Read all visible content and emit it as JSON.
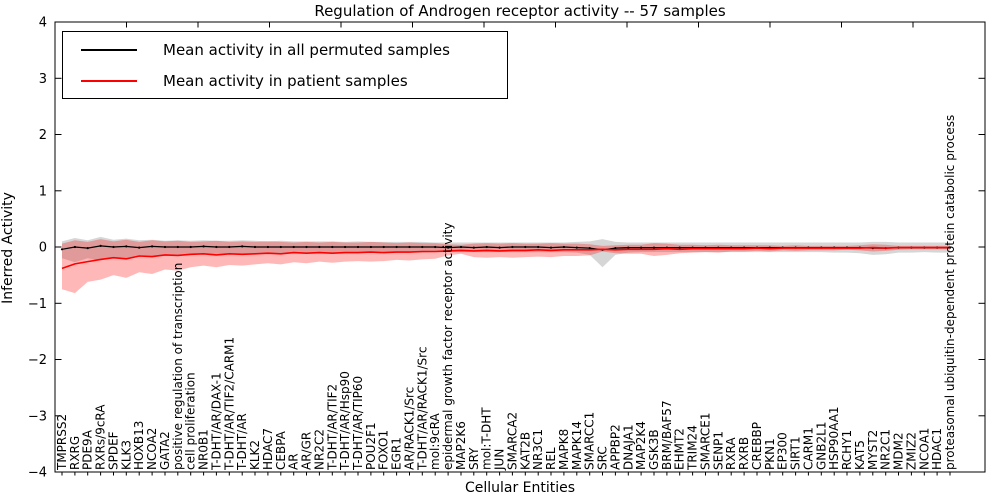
{
  "title": "Regulation of Androgen receptor activity -- 57 samples",
  "axes": {
    "x_label": "Cellular Entities",
    "y_label": "Inferred Activity",
    "y_tick_labels": [
      "4",
      "3",
      "2",
      "1",
      "0",
      "−1",
      "−2",
      "−3",
      "−4"
    ],
    "y_tick_values": [
      4,
      3,
      2,
      1,
      0,
      -1,
      -2,
      -3,
      -4
    ]
  },
  "legend": {
    "entries": [
      {
        "label": "Mean activity in all permuted samples",
        "color": "#000000"
      },
      {
        "label": "Mean activity in patient samples",
        "color": "#ff0000"
      }
    ]
  },
  "chart_data": {
    "type": "line",
    "title": "Regulation of Androgen receptor activity -- 57 samples",
    "xlabel": "Cellular Entities",
    "ylabel": "Inferred Activity",
    "ylim": [
      -4,
      4
    ],
    "grid": false,
    "legend_position": "upper left",
    "categories": [
      "TMPRSS2",
      "RXRG",
      "PDE9A",
      "RXRs/9cRA",
      "SPDEF",
      "KLK3",
      "HOXB13",
      "NCOA2",
      "GATA2",
      "positive regulation of transcription",
      "cell proliferation",
      "NR0B1",
      "T-DHT/AR/DAX-1",
      "T-DHT/AR/TIF2/CARM1",
      "T-DHT/AR",
      "KLK2",
      "HDAC7",
      "CEBPA",
      "AR",
      "AR/GR",
      "NR2C2",
      "T-DHT/AR/TIF2",
      "T-DHT/AR/Hsp90",
      "T-DHT/AR/TIP60",
      "POU2F1",
      "FOXO1",
      "EGR1",
      "AR/RACK1/Src",
      "T-DHT/AR/RACK1/Src",
      "mol:9cRA",
      "epidermal growth factor receptor activity",
      "MAP2K6",
      "SRY",
      "mol:T-DHT",
      "JUN",
      "SMARCA2",
      "KAT2B",
      "NR3C1",
      "REL",
      "MAPK8",
      "MAPK14",
      "SMARCC1",
      "SRC",
      "APPBP2",
      "DNAJA1",
      "MAP2K4",
      "GSK3B",
      "BRM/BAF57",
      "EHMT2",
      "TRIM24",
      "SMARCE1",
      "SENP1",
      "RXRA",
      "RXRB",
      "CREBBP",
      "PKN1",
      "EP300",
      "SIRT1",
      "CARM1",
      "GNB2L1",
      "HSP90AA1",
      "RCHY1",
      "KAT5",
      "MYST2",
      "NR2C1",
      "MDM2",
      "ZMIZ2",
      "NCOA1",
      "HDAC1",
      "proteasomal ubiquitin-dependent protein catabolic process"
    ],
    "series": [
      {
        "id": "permuted",
        "name": "Mean activity in all permuted samples",
        "color": "#000000",
        "band_color": "rgba(0,0,0,0.16)",
        "markers": true,
        "values": [
          -0.04,
          0.0,
          -0.02,
          0.02,
          0.0,
          0.01,
          -0.01,
          0.01,
          0.0,
          0.0,
          0.0,
          0.01,
          0.0,
          0.0,
          0.01,
          0.0,
          0.0,
          0.0,
          0.0,
          0.0,
          0.0,
          0.0,
          0.0,
          0.0,
          0.0,
          0.0,
          0.0,
          0.0,
          0.0,
          0.0,
          -0.01,
          0.0,
          -0.01,
          0.0,
          -0.01,
          0.0,
          0.0,
          0.0,
          -0.01,
          0.0,
          -0.01,
          -0.02,
          -0.05,
          -0.02,
          -0.01,
          -0.01,
          -0.01,
          -0.01,
          -0.01,
          -0.01,
          -0.01,
          -0.01,
          -0.01,
          -0.01,
          -0.01,
          -0.01,
          -0.01,
          -0.01,
          -0.01,
          -0.01,
          -0.01,
          -0.01,
          -0.01,
          -0.02,
          -0.02,
          -0.01,
          -0.01,
          -0.01,
          -0.01,
          -0.01
        ],
        "band_upper": [
          0.1,
          0.16,
          0.12,
          0.18,
          0.13,
          0.15,
          0.12,
          0.13,
          0.11,
          0.12,
          0.11,
          0.12,
          0.11,
          0.11,
          0.12,
          0.11,
          0.1,
          0.11,
          0.1,
          0.1,
          0.1,
          0.1,
          0.09,
          0.1,
          0.09,
          0.09,
          0.09,
          0.09,
          0.09,
          0.08,
          0.08,
          0.08,
          0.08,
          0.08,
          0.08,
          0.08,
          0.08,
          0.08,
          0.08,
          0.08,
          0.09,
          0.1,
          0.14,
          0.09,
          0.08,
          0.08,
          0.08,
          0.08,
          0.08,
          0.08,
          0.08,
          0.08,
          0.08,
          0.08,
          0.08,
          0.08,
          0.08,
          0.08,
          0.08,
          0.08,
          0.08,
          0.08,
          0.08,
          0.09,
          0.09,
          0.08,
          0.08,
          0.08,
          0.08,
          0.08
        ],
        "band_lower": [
          -0.2,
          -0.27,
          -0.2,
          -0.24,
          -0.18,
          -0.2,
          -0.16,
          -0.17,
          -0.14,
          -0.15,
          -0.13,
          -0.13,
          -0.13,
          -0.12,
          -0.13,
          -0.12,
          -0.11,
          -0.12,
          -0.11,
          -0.11,
          -0.11,
          -0.11,
          -0.1,
          -0.1,
          -0.1,
          -0.1,
          -0.1,
          -0.1,
          -0.1,
          -0.09,
          -0.09,
          -0.09,
          -0.09,
          -0.09,
          -0.09,
          -0.09,
          -0.09,
          -0.09,
          -0.09,
          -0.09,
          -0.1,
          -0.14,
          -0.36,
          -0.14,
          -0.1,
          -0.09,
          -0.09,
          -0.09,
          -0.09,
          -0.09,
          -0.09,
          -0.09,
          -0.09,
          -0.09,
          -0.09,
          -0.09,
          -0.09,
          -0.09,
          -0.09,
          -0.09,
          -0.1,
          -0.1,
          -0.11,
          -0.14,
          -0.13,
          -0.1,
          -0.1,
          -0.09,
          -0.1,
          -0.1
        ]
      },
      {
        "id": "patient",
        "name": "Mean activity in patient samples",
        "color": "#ff0000",
        "band_color": "rgba(255,0,0,0.28)",
        "markers": false,
        "values": [
          -0.38,
          -0.3,
          -0.26,
          -0.22,
          -0.19,
          -0.21,
          -0.16,
          -0.17,
          -0.14,
          -0.15,
          -0.13,
          -0.12,
          -0.14,
          -0.12,
          -0.13,
          -0.12,
          -0.11,
          -0.12,
          -0.1,
          -0.11,
          -0.1,
          -0.11,
          -0.1,
          -0.1,
          -0.09,
          -0.1,
          -0.09,
          -0.09,
          -0.08,
          -0.08,
          -0.07,
          -0.06,
          -0.07,
          -0.06,
          -0.07,
          -0.06,
          -0.06,
          -0.05,
          -0.06,
          -0.05,
          -0.05,
          -0.05,
          -0.04,
          -0.05,
          -0.04,
          -0.04,
          -0.04,
          -0.03,
          -0.04,
          -0.03,
          -0.03,
          -0.03,
          -0.03,
          -0.03,
          -0.02,
          -0.03,
          -0.02,
          -0.02,
          -0.02,
          -0.02,
          -0.02,
          -0.02,
          -0.02,
          -0.01,
          -0.02,
          -0.01,
          -0.01,
          -0.01,
          -0.01,
          -0.01
        ],
        "band_upper": [
          0.06,
          0.12,
          0.09,
          0.14,
          0.1,
          0.13,
          0.09,
          0.12,
          0.1,
          0.11,
          0.09,
          0.1,
          0.11,
          0.09,
          0.1,
          0.09,
          0.1,
          0.09,
          0.08,
          0.09,
          0.08,
          0.09,
          0.08,
          0.08,
          0.09,
          0.08,
          0.07,
          0.08,
          0.07,
          0.07,
          0.05,
          0.04,
          0.06,
          0.07,
          0.06,
          0.07,
          0.06,
          0.06,
          0.07,
          0.06,
          0.06,
          0.05,
          0.02,
          0.03,
          0.04,
          0.04,
          0.07,
          0.06,
          0.04,
          0.04,
          0.03,
          0.04,
          0.03,
          0.03,
          0.03,
          0.03,
          0.02,
          0.03,
          0.02,
          0.02,
          0.02,
          0.02,
          0.03,
          0.05,
          0.04,
          0.02,
          0.02,
          0.02,
          0.02,
          0.02
        ],
        "band_lower": [
          -0.75,
          -0.82,
          -0.62,
          -0.58,
          -0.5,
          -0.55,
          -0.45,
          -0.48,
          -0.4,
          -0.42,
          -0.36,
          -0.33,
          -0.36,
          -0.32,
          -0.33,
          -0.31,
          -0.29,
          -0.31,
          -0.27,
          -0.29,
          -0.26,
          -0.28,
          -0.26,
          -0.25,
          -0.26,
          -0.25,
          -0.23,
          -0.24,
          -0.22,
          -0.21,
          -0.15,
          -0.12,
          -0.18,
          -0.19,
          -0.18,
          -0.19,
          -0.18,
          -0.17,
          -0.18,
          -0.16,
          -0.16,
          -0.15,
          -0.08,
          -0.11,
          -0.12,
          -0.12,
          -0.16,
          -0.14,
          -0.11,
          -0.1,
          -0.09,
          -0.1,
          -0.08,
          -0.08,
          -0.07,
          -0.08,
          -0.06,
          -0.07,
          -0.06,
          -0.06,
          -0.06,
          -0.05,
          -0.06,
          -0.08,
          -0.07,
          -0.05,
          -0.04,
          -0.04,
          -0.04,
          -0.04
        ]
      }
    ]
  }
}
